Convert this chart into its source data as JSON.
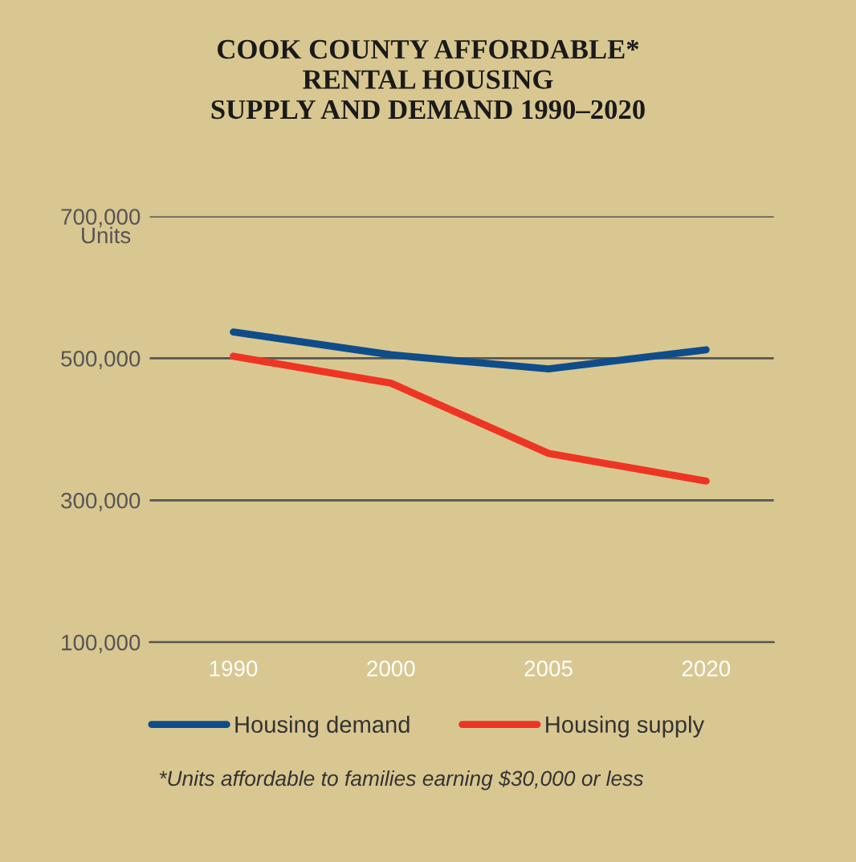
{
  "chart_data": {
    "type": "line",
    "title": "COOK COUNTY AFFORDABLE*\nRENTAL HOUSING\nSUPPLY AND DEMAND 1990–2020",
    "ylabel": "Units",
    "categories": [
      "1990",
      "2000",
      "2005",
      "2020"
    ],
    "series": [
      {
        "name": "Housing demand",
        "color": "#0f4c8a",
        "values": [
          537000,
          505000,
          485000,
          512000
        ]
      },
      {
        "name": "Housing supply",
        "color": "#ee3524",
        "values": [
          503000,
          465000,
          366000,
          327000
        ]
      }
    ],
    "ylim": [
      100000,
      700000
    ],
    "yticks": [
      {
        "value": 100000,
        "label": "100,000"
      },
      {
        "value": 300000,
        "label": "300,000"
      },
      {
        "value": 500000,
        "label": "500,000"
      },
      {
        "value": 700000,
        "label": "700,000"
      }
    ],
    "grid": "y",
    "legend": "bottom",
    "marker": "none",
    "line_style": "solid",
    "annotations": [
      "*Units affordable to families earning $30,000 or less"
    ]
  }
}
